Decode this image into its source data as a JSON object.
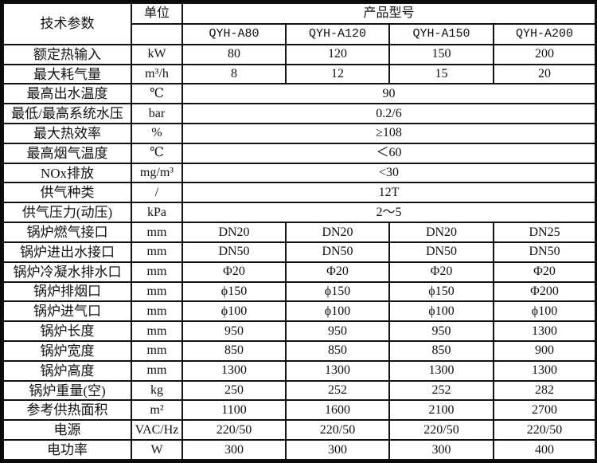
{
  "header": {
    "param_label": "技术参数",
    "unit_label": "单位",
    "model_group_label": "产品型号",
    "models": [
      "QYH-A80",
      "QYH-A120",
      "QYH-A150",
      "QYH-A200"
    ]
  },
  "rows": [
    {
      "label": "额定热输入",
      "unit": "kW",
      "values": [
        "80",
        "120",
        "150",
        "200"
      ]
    },
    {
      "label": "最大耗气量",
      "unit": "m³/h",
      "values": [
        "8",
        "12",
        "15",
        "20"
      ]
    },
    {
      "label": "最高出水温度",
      "unit": "℃",
      "value": "90"
    },
    {
      "label": "最低/最高系统水压",
      "unit": "bar",
      "value": "0.2/6"
    },
    {
      "label": "最大热效率",
      "unit": "%",
      "value": "≥108"
    },
    {
      "label": "最高烟气温度",
      "unit": "℃",
      "value": "＜60"
    },
    {
      "label": "NOx排放",
      "unit": "mg/m³",
      "value": "<30"
    },
    {
      "label": "供气种类",
      "unit": "/",
      "value": "12T"
    },
    {
      "label": "供气压力(动压)",
      "unit": "kPa",
      "value": "2～5"
    },
    {
      "label": "锅炉燃气接口",
      "unit": "mm",
      "values": [
        "DN20",
        "DN20",
        "DN20",
        "DN25"
      ]
    },
    {
      "label": "锅炉进出水接口",
      "unit": "mm",
      "values": [
        "DN50",
        "DN50",
        "DN50",
        "DN50"
      ]
    },
    {
      "label": "锅炉冷凝水排水口",
      "unit": "mm",
      "values": [
        "Φ20",
        "Φ20",
        "Φ20",
        "Φ20"
      ]
    },
    {
      "label": "锅炉排烟口",
      "unit": "mm",
      "values": [
        "ϕ150",
        "ϕ150",
        "ϕ150",
        "Φ200"
      ]
    },
    {
      "label": "锅炉进气口",
      "unit": "mm",
      "values": [
        "ϕ100",
        "ϕ100",
        "ϕ100",
        "ϕ100"
      ]
    },
    {
      "label": "锅炉长度",
      "unit": "mm",
      "values": [
        "950",
        "950",
        "950",
        "1300"
      ]
    },
    {
      "label": "锅炉宽度",
      "unit": "mm",
      "values": [
        "850",
        "850",
        "850",
        "900"
      ]
    },
    {
      "label": "锅炉高度",
      "unit": "mm",
      "values": [
        "1300",
        "1300",
        "1300",
        "1300"
      ]
    },
    {
      "label": "锅炉重量(空)",
      "unit": "kg",
      "values": [
        "250",
        "252",
        "252",
        "282"
      ]
    },
    {
      "label": "参考供热面积",
      "unit": "m²",
      "values": [
        "1100",
        "1600",
        "2100",
        "2700"
      ]
    },
    {
      "label": "电源",
      "unit": "VAC/Hz",
      "values": [
        "220/50",
        "220/50",
        "220/50",
        "220/50"
      ]
    },
    {
      "label": "电功率",
      "unit": "W",
      "values": [
        "300",
        "300",
        "300",
        "400"
      ]
    }
  ]
}
